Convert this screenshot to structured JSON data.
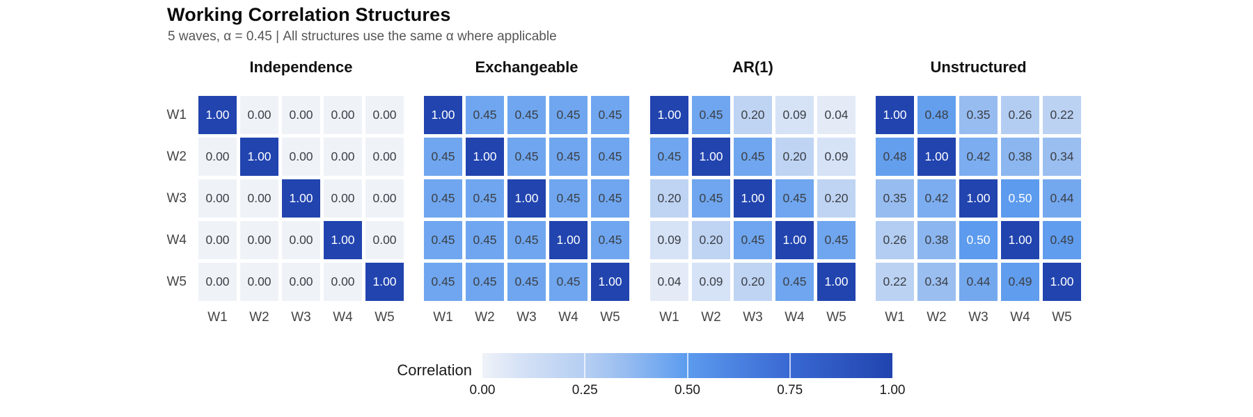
{
  "title": "Working Correlation Structures",
  "subtitle": "5 waves, α = 0.45 | All structures use the same α where applicable",
  "chart_data": {
    "type": "heatmap",
    "waves": [
      "W1",
      "W2",
      "W3",
      "W4",
      "W5"
    ],
    "value_format_decimals": 2,
    "matrices": [
      {
        "name": "Independence",
        "values": [
          [
            1.0,
            0.0,
            0.0,
            0.0,
            0.0
          ],
          [
            0.0,
            1.0,
            0.0,
            0.0,
            0.0
          ],
          [
            0.0,
            0.0,
            1.0,
            0.0,
            0.0
          ],
          [
            0.0,
            0.0,
            0.0,
            1.0,
            0.0
          ],
          [
            0.0,
            0.0,
            0.0,
            0.0,
            1.0
          ]
        ]
      },
      {
        "name": "Exchangeable",
        "values": [
          [
            1.0,
            0.45,
            0.45,
            0.45,
            0.45
          ],
          [
            0.45,
            1.0,
            0.45,
            0.45,
            0.45
          ],
          [
            0.45,
            0.45,
            1.0,
            0.45,
            0.45
          ],
          [
            0.45,
            0.45,
            0.45,
            1.0,
            0.45
          ],
          [
            0.45,
            0.45,
            0.45,
            0.45,
            1.0
          ]
        ]
      },
      {
        "name": "AR(1)",
        "values": [
          [
            1.0,
            0.45,
            0.2,
            0.09,
            0.04
          ],
          [
            0.45,
            1.0,
            0.45,
            0.2,
            0.09
          ],
          [
            0.2,
            0.45,
            1.0,
            0.45,
            0.2
          ],
          [
            0.09,
            0.2,
            0.45,
            1.0,
            0.45
          ],
          [
            0.04,
            0.09,
            0.2,
            0.45,
            1.0
          ]
        ]
      },
      {
        "name": "Unstructured",
        "values": [
          [
            1.0,
            0.48,
            0.35,
            0.26,
            0.22
          ],
          [
            0.48,
            1.0,
            0.42,
            0.38,
            0.34
          ],
          [
            0.35,
            0.42,
            1.0,
            0.5,
            0.44
          ],
          [
            0.26,
            0.38,
            0.5,
            1.0,
            0.49
          ],
          [
            0.22,
            0.34,
            0.44,
            0.49,
            1.0
          ]
        ]
      }
    ],
    "legend": {
      "label": "Correlation",
      "tick_labels": [
        "0.00",
        "0.25",
        "0.50",
        "0.75",
        "1.00"
      ],
      "range": [
        0,
        1
      ]
    },
    "color_scale": {
      "anchors": [
        [
          0.0,
          "#eff3f8"
        ],
        [
          0.04,
          "#e4ebf7"
        ],
        [
          0.09,
          "#d6e2f6"
        ],
        [
          0.2,
          "#bfd4f3"
        ],
        [
          0.26,
          "#b3cdf2"
        ],
        [
          0.35,
          "#97bcf0"
        ],
        [
          0.42,
          "#7badf0"
        ],
        [
          0.45,
          "#6fa6ef"
        ],
        [
          0.5,
          "#5c9bee"
        ],
        [
          0.75,
          "#3968d2"
        ],
        [
          1.0,
          "#2144af"
        ]
      ],
      "dark_text_color": "#3b3f46",
      "light_text_color": "#ffffff",
      "white_text_threshold": 0.5,
      "background": "#ffffff"
    }
  }
}
